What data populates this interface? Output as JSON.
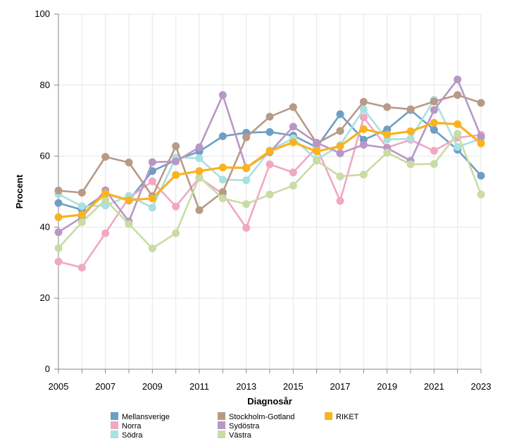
{
  "chart_data": {
    "type": "line",
    "xlabel": "Diagnosår",
    "ylabel": "Procent",
    "xlim": [
      2005,
      2023
    ],
    "ylim": [
      0,
      100
    ],
    "x_ticks": [
      2005,
      2007,
      2009,
      2011,
      2013,
      2015,
      2017,
      2019,
      2021,
      2023
    ],
    "y_ticks": [
      0,
      20,
      40,
      60,
      80,
      100
    ],
    "grid": "vertical-and-horizontal",
    "legend_position": "bottom",
    "x": [
      2005,
      2006,
      2007,
      2008,
      2009,
      2010,
      2011,
      2012,
      2013,
      2014,
      2015,
      2016,
      2017,
      2018,
      2019,
      2020,
      2021,
      2022,
      2023
    ],
    "series": [
      {
        "name": "Mellansverige",
        "color": "#6f9ec4",
        "values": [
          46.8,
          44.9,
          49.4,
          47.5,
          55.8,
          58.9,
          61.3,
          65.6,
          66.6,
          66.8,
          65.8,
          62.5,
          71.8,
          64.6,
          67.5,
          73.0,
          67.4,
          61.8,
          54.5
        ]
      },
      {
        "name": "Norra",
        "color": "#f0a8c3",
        "values": [
          30.3,
          28.6,
          38.3,
          48.3,
          52.9,
          45.8,
          53.9,
          49.4,
          39.8,
          57.7,
          55.4,
          62.5,
          47.4,
          70.9,
          62.4,
          64.6,
          61.5,
          65.2,
          66.0
        ]
      },
      {
        "name": "Södra",
        "color": "#a9e0e2",
        "values": [
          49.3,
          45.9,
          46.1,
          48.8,
          45.5,
          59.6,
          59.4,
          53.4,
          53.2,
          61.6,
          65.0,
          59.0,
          63.1,
          73.2,
          64.7,
          64.9,
          75.9,
          62.6,
          64.9
        ]
      },
      {
        "name": "Stockholm-Gotland",
        "color": "#b89a86",
        "values": [
          50.3,
          49.7,
          59.8,
          58.2,
          48.7,
          62.8,
          44.8,
          49.9,
          65.3,
          71.1,
          73.8,
          63.6,
          67.1,
          75.3,
          73.8,
          73.2,
          75.4,
          77.2,
          75.0
        ]
      },
      {
        "name": "Sydöstra",
        "color": "#b897c6",
        "values": [
          38.6,
          42.8,
          50.4,
          41.6,
          58.3,
          58.5,
          62.5,
          77.2,
          56.6,
          61.1,
          68.3,
          63.8,
          60.8,
          63.2,
          62.3,
          58.7,
          73.0,
          81.6,
          65.5
        ]
      },
      {
        "name": "Västra",
        "color": "#c8dca4",
        "values": [
          34.1,
          41.4,
          47.7,
          40.9,
          34.0,
          38.3,
          54.1,
          48.1,
          46.5,
          49.2,
          51.7,
          58.7,
          54.3,
          54.8,
          61.0,
          57.7,
          57.8,
          66.3,
          49.2
        ]
      },
      {
        "name": "RIKET",
        "color": "#f9b31f",
        "emphasis": true,
        "values": [
          42.8,
          43.5,
          49.5,
          47.6,
          48.1,
          54.7,
          55.8,
          56.8,
          56.7,
          61.4,
          63.9,
          61.3,
          62.8,
          67.6,
          66.1,
          67.0,
          69.4,
          69.0,
          63.6
        ]
      }
    ]
  }
}
